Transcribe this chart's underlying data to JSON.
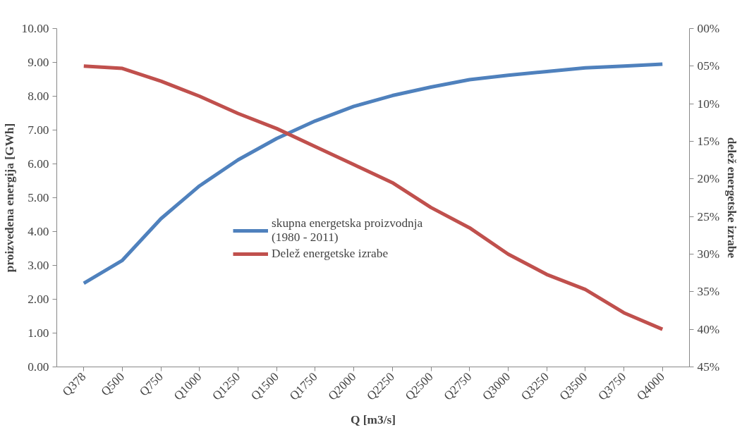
{
  "chart_data": {
    "type": "line",
    "xlabel": "Q [m3/s]",
    "ylabel": "proizvedena energija [GWh]",
    "y2label": "delež energetske izrabe",
    "categories": [
      "Q378",
      "Q500",
      "Q750",
      "Q1000",
      "Q1250",
      "Q1500",
      "Q1750",
      "Q2000",
      "Q2250",
      "Q2500",
      "Q2750",
      "Q3000",
      "Q3250",
      "Q3500",
      "Q3750",
      "Q4000"
    ],
    "series": [
      {
        "name": "skupna energetska proizvodnja\n(1980 - 2011)",
        "color": "#4f81bd",
        "values": [
          2.47,
          3.15,
          4.38,
          5.35,
          6.12,
          6.75,
          7.27,
          7.7,
          8.02,
          8.27,
          8.49,
          8.62,
          8.73,
          8.84,
          8.89,
          8.95
        ]
      },
      {
        "name": "Delež energetske izrabe",
        "color": "#c0504d",
        "axis": "y2",
        "values": [
          5.0,
          5.3,
          7.0,
          9.0,
          11.3,
          13.3,
          15.7,
          18.1,
          20.5,
          23.8,
          26.5,
          30.0,
          32.7,
          34.7,
          37.8,
          40.0
        ]
      }
    ],
    "ylim": [
      0,
      10
    ],
    "yticks": [
      {
        "value": 0,
        "label": "0.00"
      },
      {
        "value": 1,
        "label": "1.00"
      },
      {
        "value": 2,
        "label": "2.00"
      },
      {
        "value": 3,
        "label": "3.00"
      },
      {
        "value": 4,
        "label": "4.00"
      },
      {
        "value": 5,
        "label": "5.00"
      },
      {
        "value": 6,
        "label": "6.00"
      },
      {
        "value": 7,
        "label": "7.00"
      },
      {
        "value": 8,
        "label": "8.00"
      },
      {
        "value": 9,
        "label": "9.00"
      },
      {
        "value": 10,
        "label": "10.00"
      }
    ],
    "y2lim": [
      45,
      0
    ],
    "y2ticks": [
      {
        "value": 0,
        "label": "00%"
      },
      {
        "value": 5,
        "label": "05%"
      },
      {
        "value": 10,
        "label": "10%"
      },
      {
        "value": 15,
        "label": "15%"
      },
      {
        "value": 20,
        "label": "20%"
      },
      {
        "value": 25,
        "label": "25%"
      },
      {
        "value": 30,
        "label": "30%"
      },
      {
        "value": 35,
        "label": "35%"
      },
      {
        "value": 40,
        "label": "40%"
      },
      {
        "value": 45,
        "label": "45%"
      }
    ],
    "grid": false,
    "legend": "center",
    "marker": "none",
    "line_style": "solid"
  }
}
